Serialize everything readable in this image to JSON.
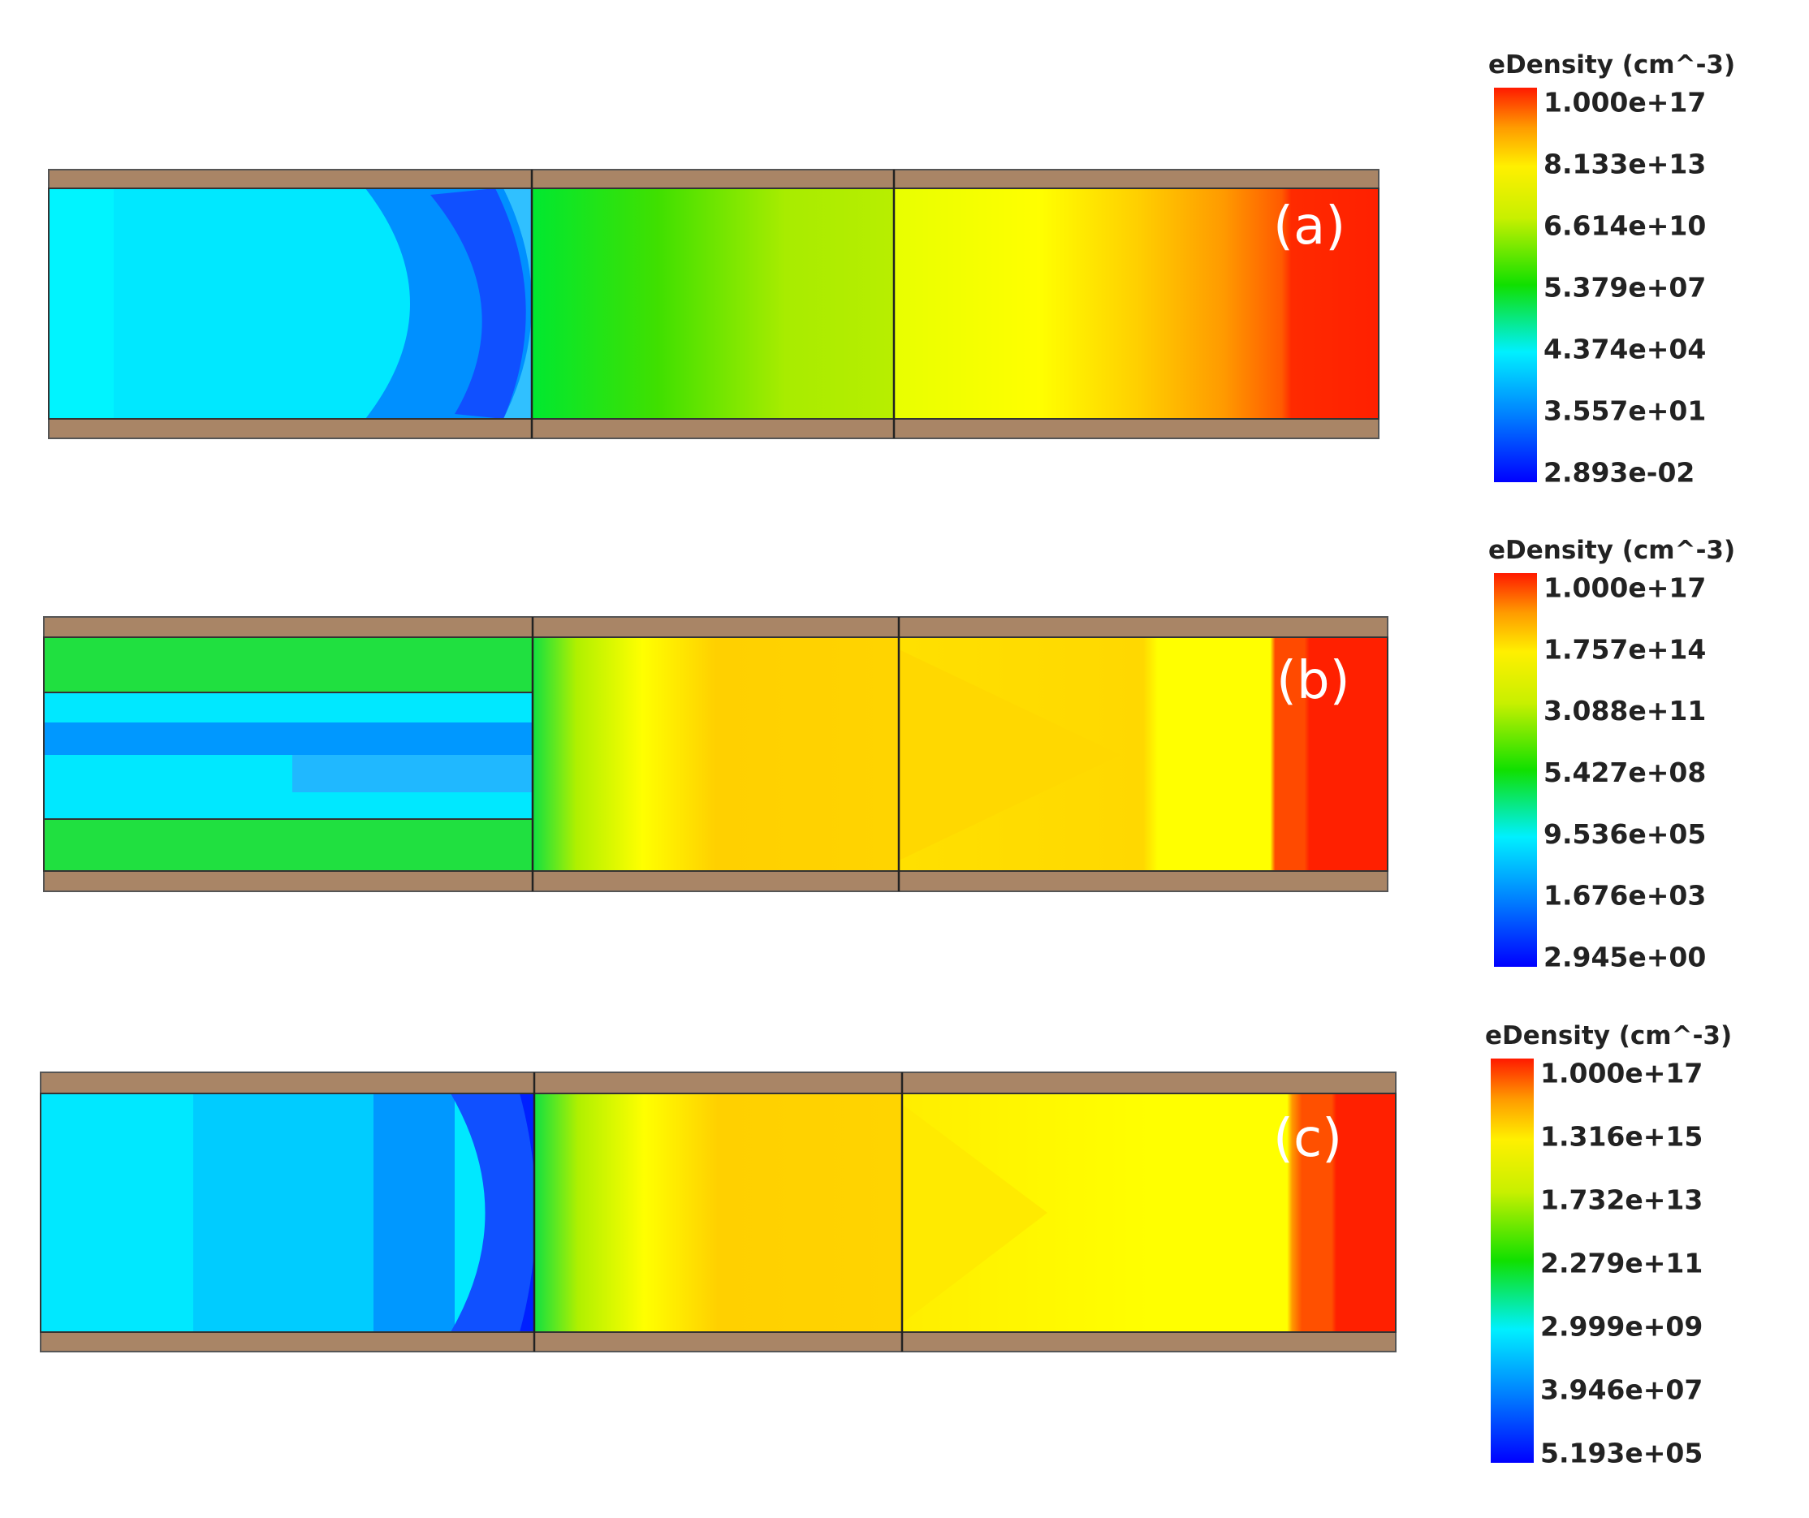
{
  "panels": [
    {
      "label": "(a)",
      "colorbar": {
        "title": "eDensity (cm^-3)",
        "ticks": [
          "1.000e+17",
          "8.133e+13",
          "6.614e+10",
          "5.379e+07",
          "4.374e+04",
          "3.557e+01",
          "2.893e-02"
        ]
      }
    },
    {
      "label": "(b)",
      "colorbar": {
        "title": "eDensity (cm^-3)",
        "ticks": [
          "1.000e+17",
          "1.757e+14",
          "3.088e+11",
          "5.427e+08",
          "9.536e+05",
          "1.676e+03",
          "2.945e+00"
        ]
      }
    },
    {
      "label": "(c)",
      "colorbar": {
        "title": "eDensity (cm^-3)",
        "ticks": [
          "1.000e+17",
          "1.316e+15",
          "1.732e+13",
          "2.279e+11",
          "2.999e+09",
          "3.946e+07",
          "5.193e+05"
        ]
      }
    }
  ]
}
